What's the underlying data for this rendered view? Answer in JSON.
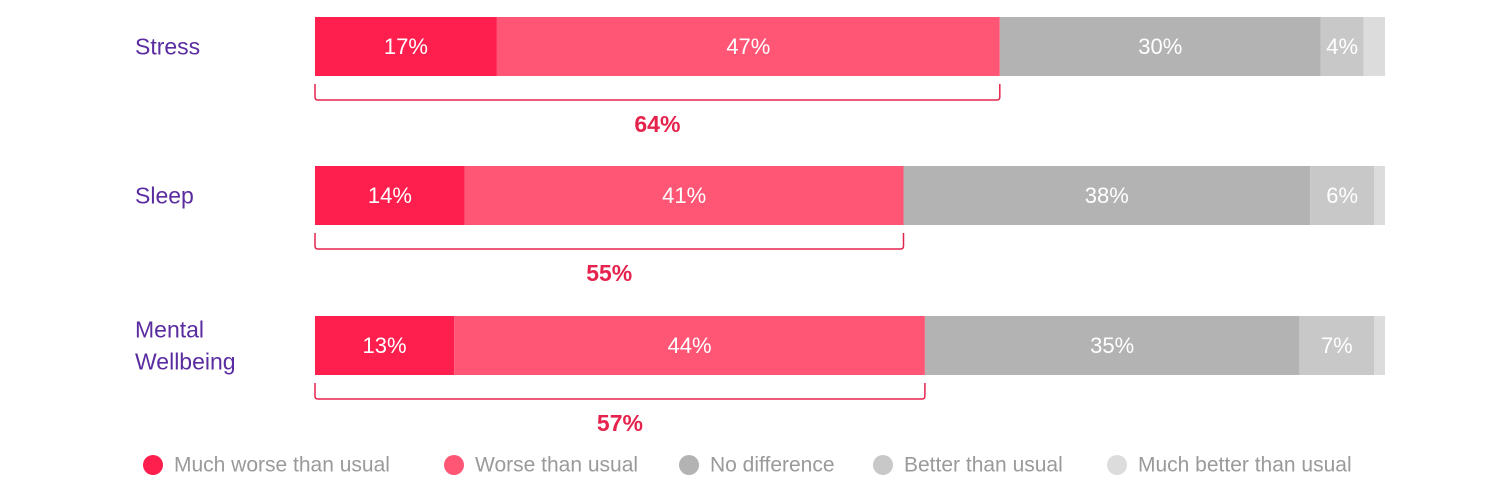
{
  "chart_data": {
    "type": "bar",
    "orientation": "horizontal",
    "stacked": true,
    "categories": [
      [
        "Stress"
      ],
      [
        "Sleep"
      ],
      [
        "Mental",
        "Wellbeing"
      ]
    ],
    "series": [
      {
        "name": "Much worse than usual",
        "color": "#ff1f4f",
        "values": [
          17,
          14,
          13
        ]
      },
      {
        "name": "Worse than usual",
        "color": "#ff5676",
        "values": [
          47,
          41,
          44
        ]
      },
      {
        "name": "No difference",
        "color": "#b3b3b3",
        "values": [
          30,
          38,
          35
        ]
      },
      {
        "name": "Better than usual",
        "color": "#c8c8c8",
        "values": [
          4,
          6,
          7
        ]
      },
      {
        "name": "Much better than usual",
        "color": "#dcdcdc",
        "values": [
          2,
          1,
          1
        ]
      }
    ],
    "segment_labels": [
      [
        "17%",
        "47%",
        "30%",
        "4%",
        ""
      ],
      [
        "14%",
        "41%",
        "38%",
        "6%",
        ""
      ],
      [
        "13%",
        "44%",
        "35%",
        "7%",
        ""
      ]
    ],
    "bracket_totals": [
      "64%",
      "55%",
      "57%"
    ],
    "bracket_color": "#e5234d",
    "category_label_color": "#5a2ca0",
    "legend_text_color": "#9a9a9a",
    "legend_position": "bottom",
    "xlim": [
      0,
      100
    ],
    "grid": false
  }
}
